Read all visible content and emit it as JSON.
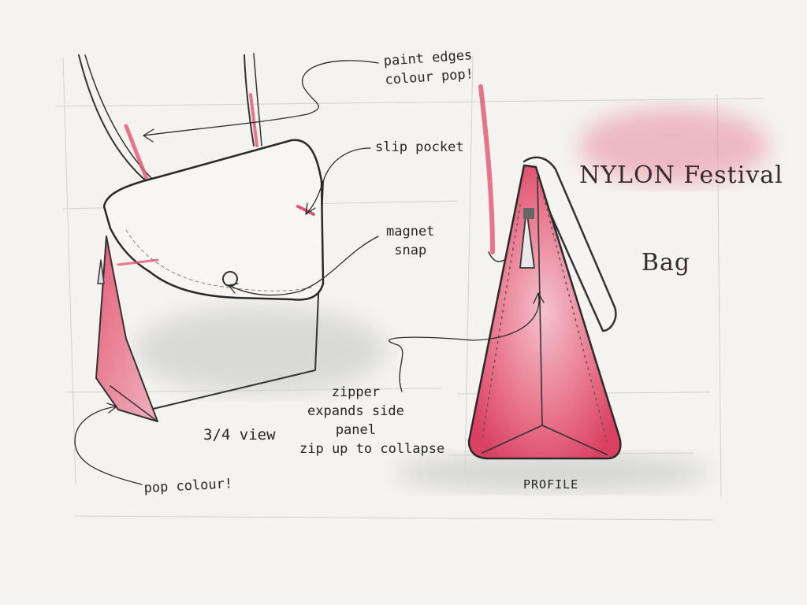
{
  "title": {
    "line1": "NYLON Festival",
    "line2": "Bag"
  },
  "annotations": {
    "paint_edges": "paint edges\ncolour pop!",
    "slip_pocket": "slip pocket",
    "magnet_snap": "magnet\nsnap",
    "zipper": "zipper\nexpands side\npanel",
    "zip_up": "zip up to collapse",
    "three_quarter_view": "3/4 view",
    "pop_colour": "pop colour!",
    "profile": "PROFILE"
  },
  "colors": {
    "paper": "#f4f3ef",
    "pencil": "#333333",
    "accent_pink": "#e25570",
    "wash_pink": "#e88a9d",
    "shadow": "#cfcfcf"
  }
}
